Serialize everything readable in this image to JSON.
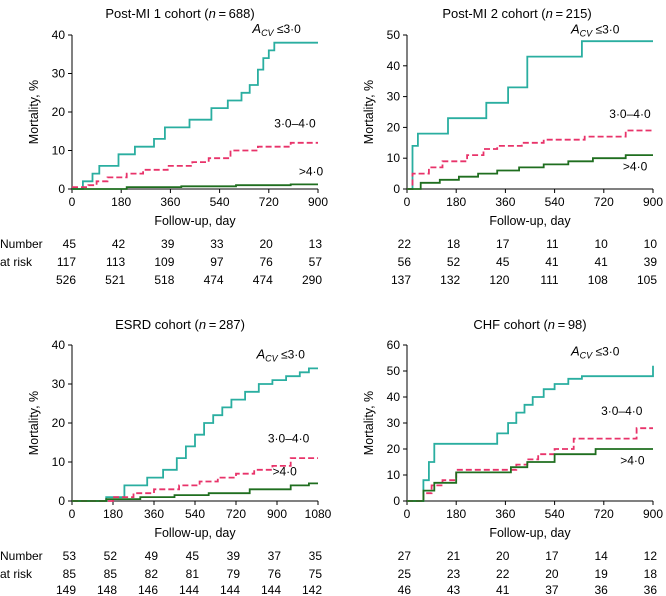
{
  "colors": {
    "acv_low": "#2aaea0",
    "acv_mid": "#e8336a",
    "acv_high": "#1f6e1f"
  },
  "at_risk_label": [
    "Number",
    "at risk"
  ],
  "chart_data": [
    {
      "type": "line",
      "title": "Post-MI 1 cohort (n = 688)",
      "xlabel": "Follow-up, day",
      "ylabel": "Mortality, %",
      "xlim": [
        0,
        900
      ],
      "ylim": [
        0,
        40
      ],
      "xticks": [
        0,
        180,
        360,
        540,
        720,
        900
      ],
      "yticks": [
        0,
        10,
        20,
        30,
        40
      ],
      "xtick_labels": [
        "0",
        "180",
        "360",
        "540",
        "720",
        "900"
      ],
      "ytick_labels": [
        "0",
        "10",
        "20",
        "30",
        "40"
      ],
      "series": [
        {
          "name": "A_CV ≤3·0",
          "label": "A",
          "label_sub": "CV",
          "label_suffix": " ≤3·0",
          "style": "solid",
          "color_key": "acv_low",
          "x": [
            0,
            40,
            75,
            100,
            120,
            170,
            230,
            300,
            340,
            430,
            510,
            570,
            620,
            650,
            680,
            700,
            720,
            740,
            900
          ],
          "y": [
            0,
            2,
            4,
            6,
            6,
            9,
            11,
            13,
            16,
            18,
            21,
            23,
            25,
            27,
            31,
            34,
            36,
            38,
            38
          ]
        },
        {
          "name": "3·0–4·0",
          "label": "3·0–4·0",
          "style": "dashed",
          "color_key": "acv_mid",
          "x": [
            0,
            60,
            90,
            130,
            200,
            260,
            350,
            440,
            500,
            580,
            680,
            800,
            900
          ],
          "y": [
            0.5,
            1,
            2,
            3,
            4,
            5,
            6,
            7,
            8,
            10,
            11,
            12,
            12
          ]
        },
        {
          "name": ">4·0",
          "label": ">4·0",
          "style": "solid",
          "color_key": "acv_high",
          "x": [
            0,
            200,
            400,
            600,
            800,
            900
          ],
          "y": [
            0,
            0.5,
            0.7,
            1,
            1.2,
            1.2
          ]
        }
      ],
      "at_risk_x": [
        0,
        180,
        360,
        540,
        720,
        900
      ],
      "at_risk": [
        [
          "45",
          "42",
          "39",
          "33",
          "20",
          "13"
        ],
        [
          "117",
          "113",
          "109",
          "97",
          "76",
          "57"
        ],
        [
          "526",
          "521",
          "518",
          "474",
          "474",
          "290"
        ]
      ]
    },
    {
      "type": "line",
      "title": "Post-MI 2 cohort (n = 215)",
      "xlabel": "Follow-up, day",
      "ylabel": "Mortality, %",
      "xlim": [
        0,
        900
      ],
      "ylim": [
        0,
        50
      ],
      "xticks": [
        0,
        180,
        360,
        540,
        720,
        900
      ],
      "yticks": [
        0,
        10,
        20,
        30,
        40,
        50
      ],
      "xtick_labels": [
        "0",
        "180",
        "360",
        "540",
        "720",
        "900"
      ],
      "ytick_labels": [
        "0",
        "10",
        "20",
        "30",
        "40",
        "50"
      ],
      "series": [
        {
          "name": "A_CV ≤3·0",
          "label": "A",
          "label_sub": "CV",
          "label_suffix": " ≤3·0",
          "style": "solid",
          "color_key": "acv_low",
          "x": [
            0,
            20,
            40,
            150,
            290,
            370,
            440,
            640,
            900
          ],
          "y": [
            0,
            14,
            18,
            23,
            28,
            33,
            43,
            48,
            48
          ]
        },
        {
          "name": "3·0–4·0",
          "label": "3·0–4·0",
          "style": "dashed",
          "color_key": "acv_mid",
          "x": [
            0,
            20,
            80,
            130,
            220,
            280,
            330,
            420,
            500,
            650,
            800,
            900
          ],
          "y": [
            0,
            5,
            7,
            9,
            11,
            13,
            14,
            15,
            16,
            17,
            19,
            19
          ]
        },
        {
          "name": ">4·0",
          "label": ">4·0",
          "style": "solid",
          "color_key": "acv_high",
          "x": [
            0,
            50,
            120,
            190,
            260,
            330,
            410,
            500,
            590,
            680,
            800,
            900
          ],
          "y": [
            0,
            2,
            3,
            4,
            5,
            6,
            7,
            8,
            9,
            10,
            11,
            11
          ]
        }
      ],
      "at_risk_x": [
        0,
        180,
        360,
        540,
        720,
        900
      ],
      "at_risk": [
        [
          "22",
          "18",
          "17",
          "11",
          "10",
          "10"
        ],
        [
          "56",
          "52",
          "45",
          "41",
          "41",
          "39"
        ],
        [
          "137",
          "132",
          "120",
          "111",
          "108",
          "105"
        ]
      ]
    },
    {
      "type": "line",
      "title": "ESRD cohort (n = 287)",
      "xlabel": "Follow-up, day",
      "ylabel": "Mortality, %",
      "xlim": [
        0,
        1080
      ],
      "ylim": [
        0,
        40
      ],
      "xticks": [
        0,
        180,
        360,
        540,
        720,
        900,
        1080
      ],
      "yticks": [
        0,
        10,
        20,
        30,
        40
      ],
      "xtick_labels": [
        "0",
        "180",
        "360",
        "540",
        "720",
        "900",
        "1080"
      ],
      "ytick_labels": [
        "0",
        "10",
        "20",
        "30",
        "40"
      ],
      "series": [
        {
          "name": "A_CV ≤3·0",
          "label": "A",
          "label_sub": "CV",
          "label_suffix": " ≤3·0",
          "style": "solid",
          "color_key": "acv_low",
          "x": [
            0,
            150,
            230,
            330,
            400,
            460,
            500,
            540,
            580,
            620,
            660,
            700,
            760,
            820,
            880,
            940,
            1000,
            1040,
            1080
          ],
          "y": [
            0,
            1,
            4,
            6,
            8,
            11,
            14,
            17,
            20,
            22,
            24,
            26,
            28,
            30,
            31,
            32,
            33,
            34,
            34
          ]
        },
        {
          "name": "3·0–4·0",
          "label": "3·0–4·0",
          "style": "dashed",
          "color_key": "acv_mid",
          "x": [
            0,
            180,
            270,
            360,
            470,
            560,
            640,
            720,
            800,
            880,
            960,
            1080
          ],
          "y": [
            0,
            1,
            2,
            3,
            4,
            5,
            6,
            7,
            8,
            9,
            11,
            11
          ]
        },
        {
          "name": ">4·0",
          "label": ">4·0",
          "style": "solid",
          "color_key": "acv_high",
          "x": [
            0,
            150,
            300,
            450,
            600,
            780,
            960,
            1040,
            1080
          ],
          "y": [
            0,
            0.5,
            1,
            1.5,
            2,
            3,
            4,
            4.5,
            4.5
          ]
        }
      ],
      "at_risk_x": [
        0,
        180,
        360,
        540,
        720,
        900,
        1080
      ],
      "at_risk": [
        [
          "53",
          "52",
          "49",
          "45",
          "39",
          "37",
          "35"
        ],
        [
          "85",
          "85",
          "82",
          "81",
          "79",
          "76",
          "75"
        ],
        [
          "149",
          "148",
          "146",
          "144",
          "144",
          "144",
          "142"
        ]
      ]
    },
    {
      "type": "line",
      "title": "CHF cohort (n = 98)",
      "xlabel": "Follow-up, day",
      "ylabel": "Mortality, %",
      "xlim": [
        0,
        900
      ],
      "ylim": [
        0,
        60
      ],
      "xticks": [
        0,
        180,
        360,
        540,
        720,
        900
      ],
      "yticks": [
        0,
        10,
        20,
        30,
        40,
        50,
        60
      ],
      "xtick_labels": [
        "0",
        "180",
        "360",
        "540",
        "720",
        "900"
      ],
      "ytick_labels": [
        "0",
        "10",
        "20",
        "30",
        "40",
        "50",
        "60"
      ],
      "series": [
        {
          "name": "A_CV ≤3·0",
          "label": "A",
          "label_sub": "CV",
          "label_suffix": " ≤3·0",
          "style": "solid",
          "color_key": "acv_low",
          "x": [
            0,
            60,
            80,
            100,
            330,
            370,
            400,
            430,
            460,
            500,
            540,
            590,
            640,
            900
          ],
          "y": [
            0,
            8,
            15,
            22,
            26,
            30,
            34,
            37,
            40,
            43,
            45,
            47,
            48,
            52
          ]
        },
        {
          "name": "3·0–4·0",
          "label": "3·0–4·0",
          "style": "dashed",
          "color_key": "acv_mid",
          "x": [
            0,
            60,
            90,
            130,
            180,
            400,
            440,
            480,
            540,
            610,
            840,
            900
          ],
          "y": [
            0,
            3,
            6,
            8,
            12,
            14,
            16,
            18,
            20,
            24,
            28,
            28
          ]
        },
        {
          "name": ">4·0",
          "label": ">4·0",
          "style": "solid",
          "color_key": "acv_high",
          "x": [
            0,
            60,
            100,
            180,
            380,
            440,
            540,
            690,
            900
          ],
          "y": [
            0,
            4,
            7,
            11,
            13,
            15,
            18,
            20,
            20
          ]
        }
      ],
      "at_risk_x": [
        0,
        180,
        360,
        540,
        720,
        900
      ],
      "at_risk": [
        [
          "27",
          "21",
          "20",
          "17",
          "14",
          "12"
        ],
        [
          "25",
          "23",
          "22",
          "20",
          "19",
          "18"
        ],
        [
          "46",
          "43",
          "41",
          "37",
          "36",
          "36"
        ]
      ]
    }
  ]
}
